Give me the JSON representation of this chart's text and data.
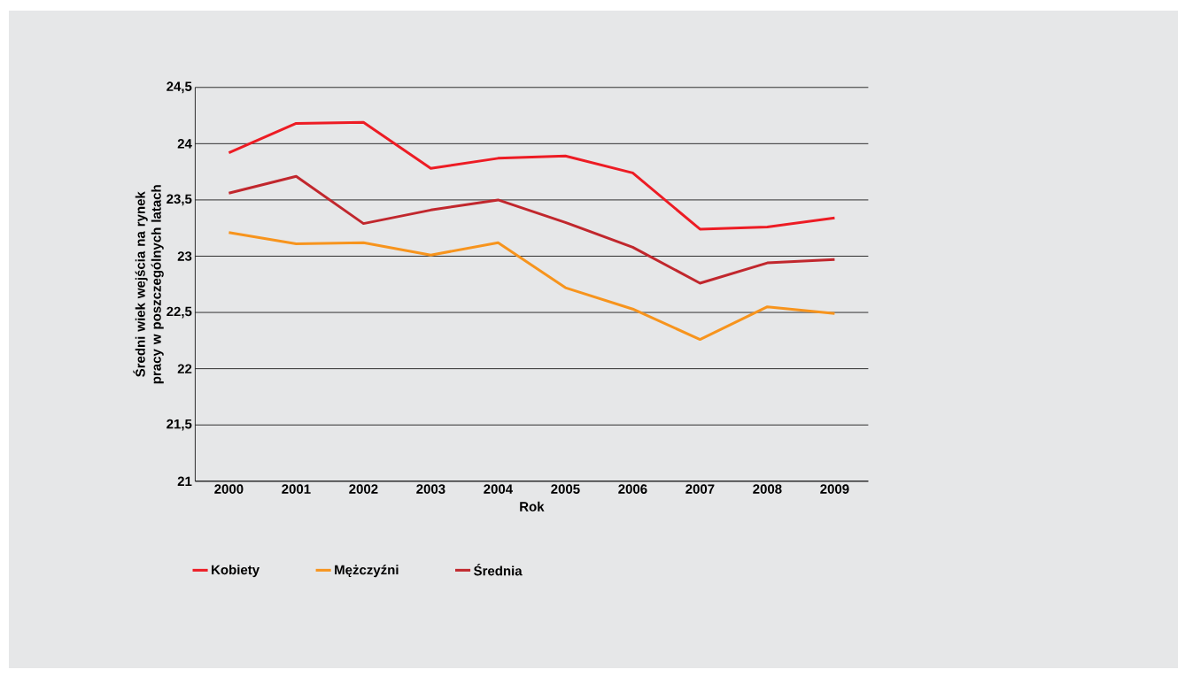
{
  "chart_data": {
    "type": "line",
    "xlabel": "Rok",
    "ylabel": "Średni wiek wejścia na rynek pracy w poszczególnych latach",
    "categories": [
      "2000",
      "2001",
      "2002",
      "2003",
      "2004",
      "2005",
      "2006",
      "2007",
      "2008",
      "2009"
    ],
    "series": [
      {
        "name": "Kobiety",
        "color": "#ed1c24",
        "values": [
          23.92,
          24.18,
          24.19,
          23.78,
          23.87,
          23.89,
          23.74,
          23.24,
          23.26,
          23.34
        ]
      },
      {
        "name": "Mężczyźni",
        "color": "#f7941d",
        "values": [
          23.21,
          23.11,
          23.12,
          23.01,
          23.12,
          22.72,
          22.53,
          22.26,
          22.55,
          22.49
        ]
      },
      {
        "name": "Średnia",
        "color": "#c1272d",
        "values": [
          23.56,
          23.71,
          23.29,
          23.41,
          23.5,
          23.3,
          23.08,
          22.76,
          22.94,
          22.97
        ]
      }
    ],
    "ylim": [
      21,
      24.5
    ],
    "yticks": [
      21,
      {
        "value": 21.5,
        "label": "21,5"
      },
      22,
      {
        "value": 22.5,
        "label": "22,5"
      },
      23,
      {
        "value": 23.5,
        "label": "23,5"
      },
      24,
      {
        "value": 24.5,
        "label": "24,5"
      }
    ],
    "grid": "y",
    "legend": "bottom",
    "marker": "none",
    "line_style": "solid"
  }
}
